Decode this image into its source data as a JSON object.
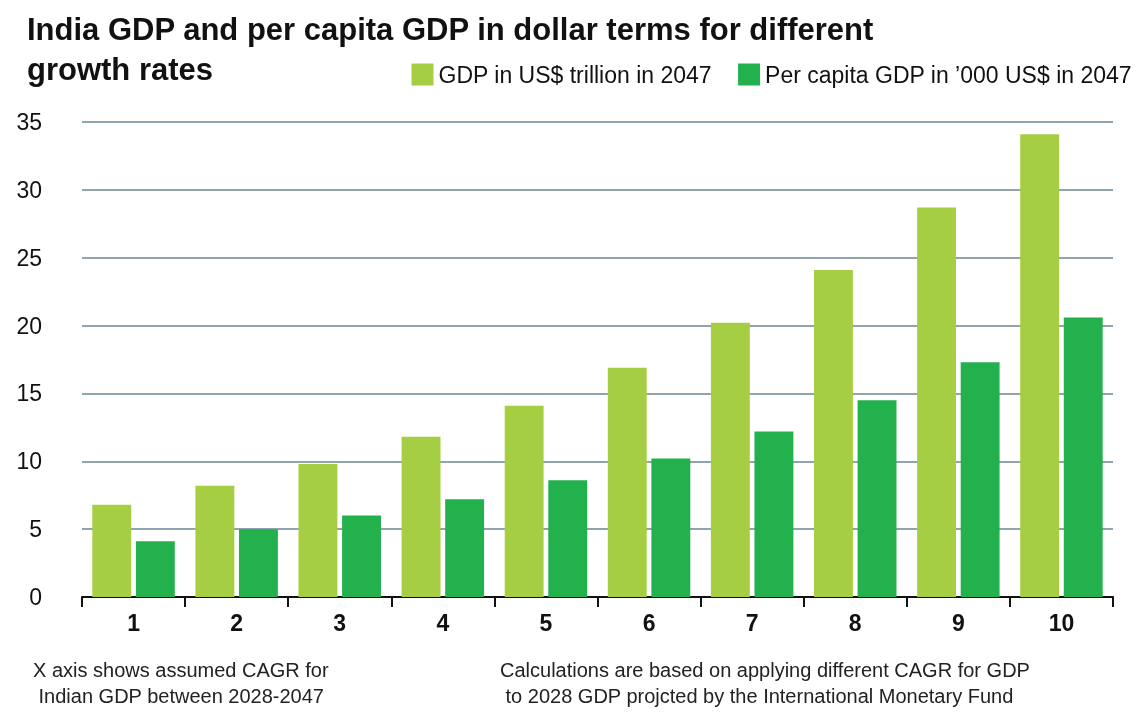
{
  "chart_data": {
    "type": "bar",
    "title": "India GDP and per capita GDP in dollar terms for different growth rates",
    "categories": [
      "1",
      "2",
      "3",
      "4",
      "5",
      "6",
      "7",
      "8",
      "9",
      "10"
    ],
    "series": [
      {
        "name": "GDP in US$ trillion in 2047",
        "color": "#a6ce42",
        "values": [
          6.8,
          8.2,
          9.8,
          11.8,
          14.1,
          16.9,
          20.2,
          24.1,
          28.7,
          34.1
        ]
      },
      {
        "name": "Per capita GDP in ’000 US$ in 2047",
        "color": "#22b14c",
        "values": [
          4.1,
          5.0,
          6.0,
          7.2,
          8.6,
          10.2,
          12.2,
          14.5,
          17.3,
          20.6
        ]
      }
    ],
    "ylim": [
      0,
      35
    ],
    "yticks": [
      0,
      5,
      10,
      15,
      20,
      25,
      30,
      35
    ],
    "grid": "y",
    "legend": "top right",
    "annotations": [
      "X axis shows assumed CAGR for Indian GDP between 2028-2047",
      "Calculations are based on applying different CAGR for GDP to 2028 GDP projcted by the International Monetary Fund"
    ]
  }
}
